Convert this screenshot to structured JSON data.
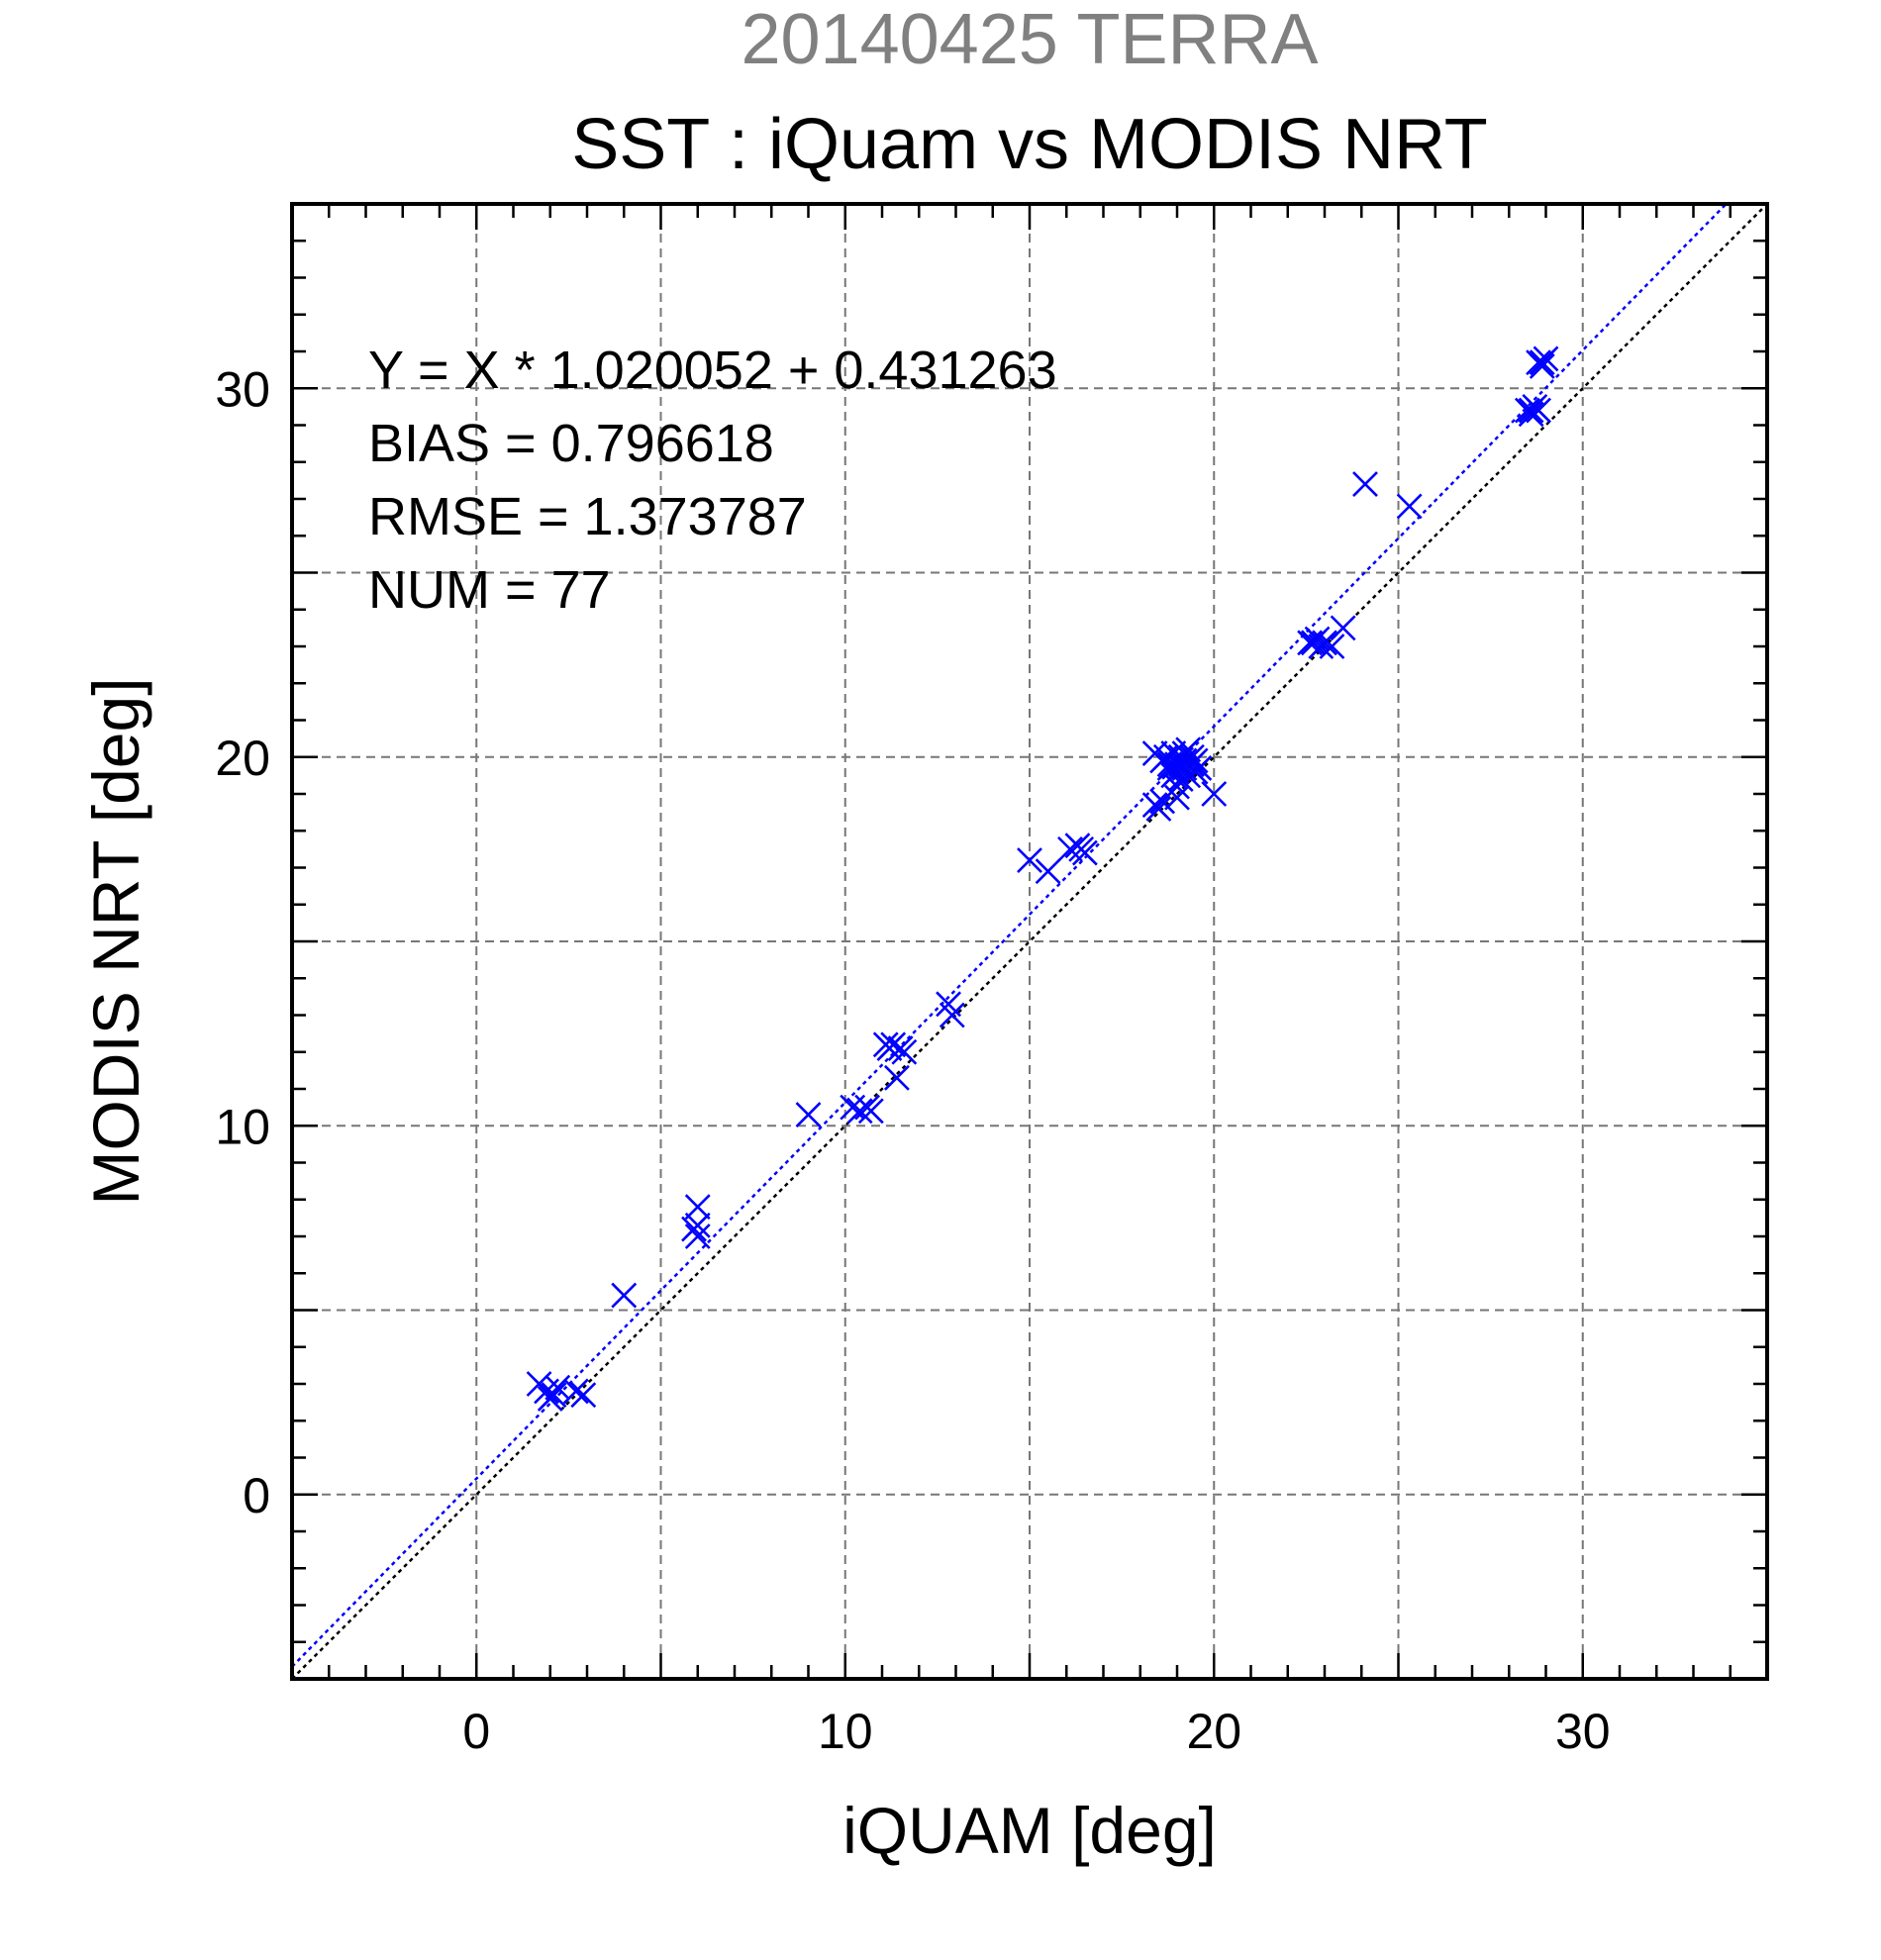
{
  "chart_data": {
    "type": "scatter",
    "supertitle": "20140425 TERRA",
    "title": "SST : iQuam vs MODIS NRT",
    "xlabel": "iQUAM [deg]",
    "ylabel": "MODIS NRT [deg]",
    "xlim": [
      -5,
      35
    ],
    "ylim": [
      -5,
      35
    ],
    "xticks": [
      0,
      10,
      20,
      30
    ],
    "yticks": [
      0,
      10,
      20,
      30
    ],
    "grid_step": 5,
    "minor_tick_step": 1,
    "grid": true,
    "marker": "x",
    "colors": {
      "points": "#0000ff",
      "fit_line": "#0000ff",
      "identity_line": "#000000",
      "supertitle": "#808080"
    },
    "annotations": [
      "Y = X * 1.020052 + 0.431263",
      "BIAS = 0.796618",
      "RMSE = 1.373787",
      "NUM = 77"
    ],
    "fit_line": {
      "slope": 1.020052,
      "intercept": 0.431263,
      "style": "dotted"
    },
    "identity_line": {
      "slope": 1,
      "intercept": 0,
      "style": "dotted"
    },
    "points": [
      [
        1.7,
        3.0
      ],
      [
        1.9,
        2.8
      ],
      [
        2.0,
        2.6
      ],
      [
        2.1,
        2.7
      ],
      [
        2.2,
        2.9
      ],
      [
        2.7,
        2.8
      ],
      [
        2.9,
        2.7
      ],
      [
        4.0,
        5.4
      ],
      [
        6.0,
        7.8
      ],
      [
        6.0,
        7.3
      ],
      [
        6.0,
        7.0
      ],
      [
        9.0,
        10.3
      ],
      [
        10.2,
        10.5
      ],
      [
        10.4,
        10.4
      ],
      [
        10.6,
        10.5
      ],
      [
        10.7,
        10.4
      ],
      [
        11.1,
        12.2
      ],
      [
        11.3,
        12.2
      ],
      [
        11.5,
        12.1
      ],
      [
        11.6,
        12.0
      ],
      [
        11.4,
        11.3
      ],
      [
        12.8,
        13.3
      ],
      [
        12.9,
        13.0
      ],
      [
        15.0,
        17.2
      ],
      [
        15.5,
        16.9
      ],
      [
        16.1,
        17.5
      ],
      [
        16.3,
        17.6
      ],
      [
        16.5,
        17.4
      ],
      [
        18.4,
        18.7
      ],
      [
        18.5,
        18.6
      ],
      [
        18.6,
        18.8
      ],
      [
        18.4,
        20.1
      ],
      [
        18.6,
        19.9
      ],
      [
        18.7,
        20.0
      ],
      [
        18.8,
        19.7
      ],
      [
        18.9,
        19.5
      ],
      [
        18.9,
        20.1
      ],
      [
        19.0,
        19.8
      ],
      [
        19.0,
        19.6
      ],
      [
        19.1,
        20.0
      ],
      [
        19.1,
        19.4
      ],
      [
        19.2,
        19.9
      ],
      [
        19.2,
        19.7
      ],
      [
        19.3,
        20.2
      ],
      [
        19.3,
        19.5
      ],
      [
        19.4,
        19.8
      ],
      [
        19.4,
        20.0
      ],
      [
        19.5,
        19.6
      ],
      [
        19.5,
        19.9
      ],
      [
        19.0,
        19.2
      ],
      [
        19.0,
        18.9
      ],
      [
        18.8,
        19.8
      ],
      [
        19.6,
        19.7
      ],
      [
        19.2,
        20.1
      ],
      [
        20.0,
        19.0
      ],
      [
        22.6,
        23.1
      ],
      [
        22.8,
        23.2
      ],
      [
        22.9,
        23.0
      ],
      [
        23.0,
        23.1
      ],
      [
        23.2,
        23.0
      ],
      [
        23.5,
        23.5
      ],
      [
        24.1,
        27.4
      ],
      [
        25.3,
        26.8
      ],
      [
        28.5,
        29.4
      ],
      [
        28.6,
        29.3
      ],
      [
        28.7,
        29.5
      ],
      [
        28.8,
        29.4
      ],
      [
        28.6,
        29.4
      ],
      [
        28.8,
        30.7
      ],
      [
        28.9,
        30.6
      ],
      [
        29.0,
        30.8
      ],
      [
        28.9,
        30.7
      ],
      [
        5.9,
        7.2
      ],
      [
        11.2,
        12.1
      ],
      [
        16.4,
        17.5
      ],
      [
        19.1,
        19.8
      ],
      [
        22.7,
        23.1
      ]
    ]
  }
}
